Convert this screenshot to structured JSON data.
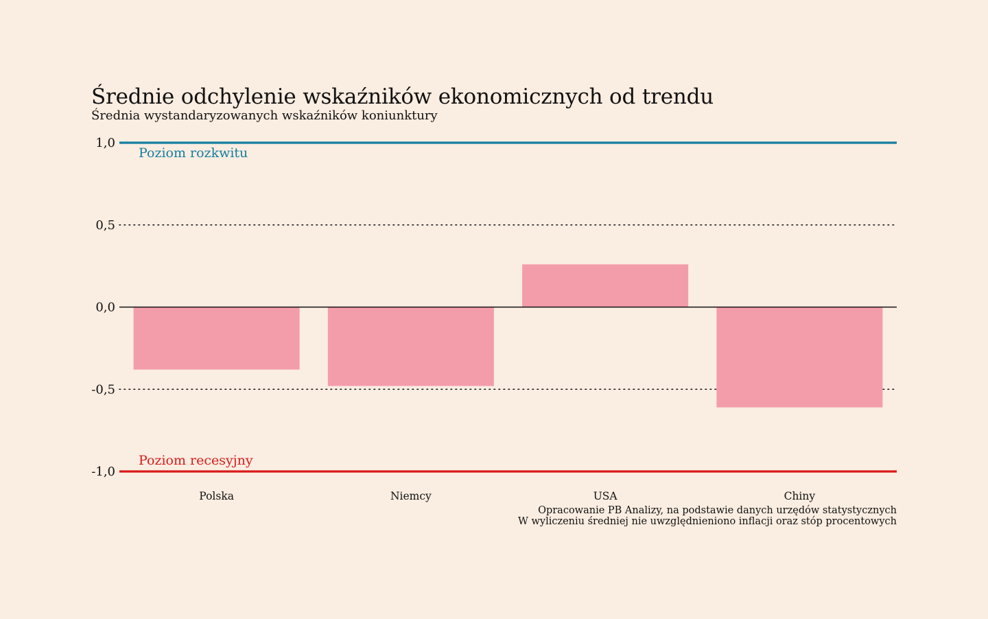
{
  "chart_data": {
    "type": "bar",
    "title": "Średnie odchylenie wskaźników ekonomicznych od trendu",
    "subtitle": "Średnia wystandaryzowanych wskaźników koniunktury",
    "categories": [
      "Polska",
      "Niemcy",
      "USA",
      "Chiny"
    ],
    "values": [
      -0.38,
      -0.48,
      0.26,
      -0.61
    ],
    "ylim": [
      -1.0,
      1.0
    ],
    "yticks": [
      1.0,
      0.5,
      0.0,
      -0.5,
      -1.0
    ],
    "ytick_labels": [
      "1,0",
      "0,5",
      "0,0",
      "-0,5",
      "-1,0"
    ],
    "reference_lines": [
      {
        "value": 1.0,
        "label": "Poziom rozkwitu",
        "color": "#127EA0"
      },
      {
        "value": -1.0,
        "label": "Poziom recesyjny",
        "color": "#D91A1A"
      }
    ],
    "bar_color": "#F49DAA",
    "grid": "dotted",
    "source": [
      "Opracowanie PB Analizy, na podstawie danych urzędów statystycznych",
      "W wyliczeniu średniej nie uwzględnieniono inflacji oraz stóp procentowych"
    ]
  }
}
